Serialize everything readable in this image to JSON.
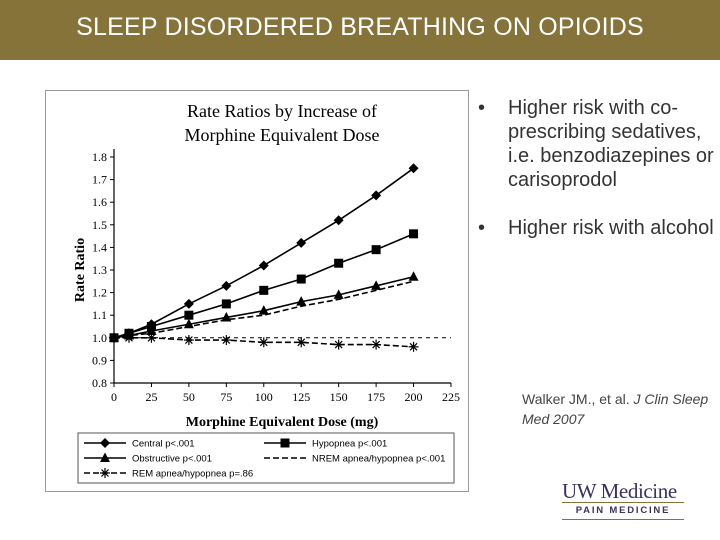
{
  "header": {
    "title": "SLEEP DISORDERED BREATHING ON OPIOIDS"
  },
  "bullets": [
    "Higher risk with co-prescribing sedatives, i.e. benzodiazepines or carisoprodol",
    "Higher risk with alcohol"
  ],
  "bullet_symbol": "•",
  "citation": {
    "text": "Walker JM., et al.",
    "journal": "J Clin Sleep Med 2007"
  },
  "logo": {
    "name": "UW Medicine",
    "subtitle": "PAIN MEDICINE"
  },
  "colors": {
    "header_bg": "#85733a",
    "logo_text": "#3b3260",
    "series": "#000000"
  },
  "chart_data": {
    "type": "line",
    "title_line1": "Rate Ratios by Increase of",
    "title_line2": "Morphine Equivalent Dose",
    "xlabel": "Morphine Equivalent Dose (mg)",
    "ylabel": "Rate Ratio",
    "x_ticks": [
      0,
      25,
      50,
      75,
      100,
      125,
      150,
      175,
      200,
      225
    ],
    "y_ticks": [
      0.8,
      0.9,
      1.0,
      1.1,
      1.2,
      1.3,
      1.4,
      1.5,
      1.6,
      1.7,
      1.8
    ],
    "xlim": [
      0,
      225
    ],
    "ylim": [
      0.8,
      1.8
    ],
    "reference_line": 1.0,
    "legend_position": "bottom",
    "series": [
      {
        "name": "Central p<.001",
        "marker": "diamond",
        "dashed": false,
        "x": [
          0,
          10,
          25,
          50,
          75,
          100,
          125,
          150,
          175,
          200
        ],
        "y": [
          1.0,
          1.02,
          1.06,
          1.15,
          1.23,
          1.32,
          1.42,
          1.52,
          1.63,
          1.75
        ]
      },
      {
        "name": "Hypopnea p<.001",
        "marker": "square",
        "dashed": false,
        "x": [
          0,
          10,
          25,
          50,
          75,
          100,
          125,
          150,
          175,
          200
        ],
        "y": [
          1.0,
          1.02,
          1.05,
          1.1,
          1.15,
          1.21,
          1.26,
          1.33,
          1.39,
          1.46
        ]
      },
      {
        "name": "Obstructive p<.001",
        "marker": "triangle",
        "dashed": false,
        "x": [
          0,
          10,
          25,
          50,
          75,
          100,
          125,
          150,
          175,
          200
        ],
        "y": [
          1.0,
          1.01,
          1.03,
          1.06,
          1.09,
          1.12,
          1.16,
          1.19,
          1.23,
          1.27
        ]
      },
      {
        "name": "NREM apnea/hypopnea p<.001",
        "marker": "none",
        "dashed": true,
        "x": [
          0,
          10,
          25,
          50,
          75,
          100,
          125,
          150,
          175,
          200
        ],
        "y": [
          1.0,
          1.01,
          1.02,
          1.05,
          1.08,
          1.1,
          1.14,
          1.17,
          1.21,
          1.25
        ]
      },
      {
        "name": "REM apnea/hypopnea p=.86",
        "marker": "asterisk",
        "dashed": true,
        "x": [
          0,
          10,
          25,
          50,
          75,
          100,
          125,
          150,
          175,
          200
        ],
        "y": [
          1.0,
          1.0,
          1.0,
          0.99,
          0.99,
          0.98,
          0.98,
          0.97,
          0.97,
          0.96
        ]
      }
    ]
  }
}
